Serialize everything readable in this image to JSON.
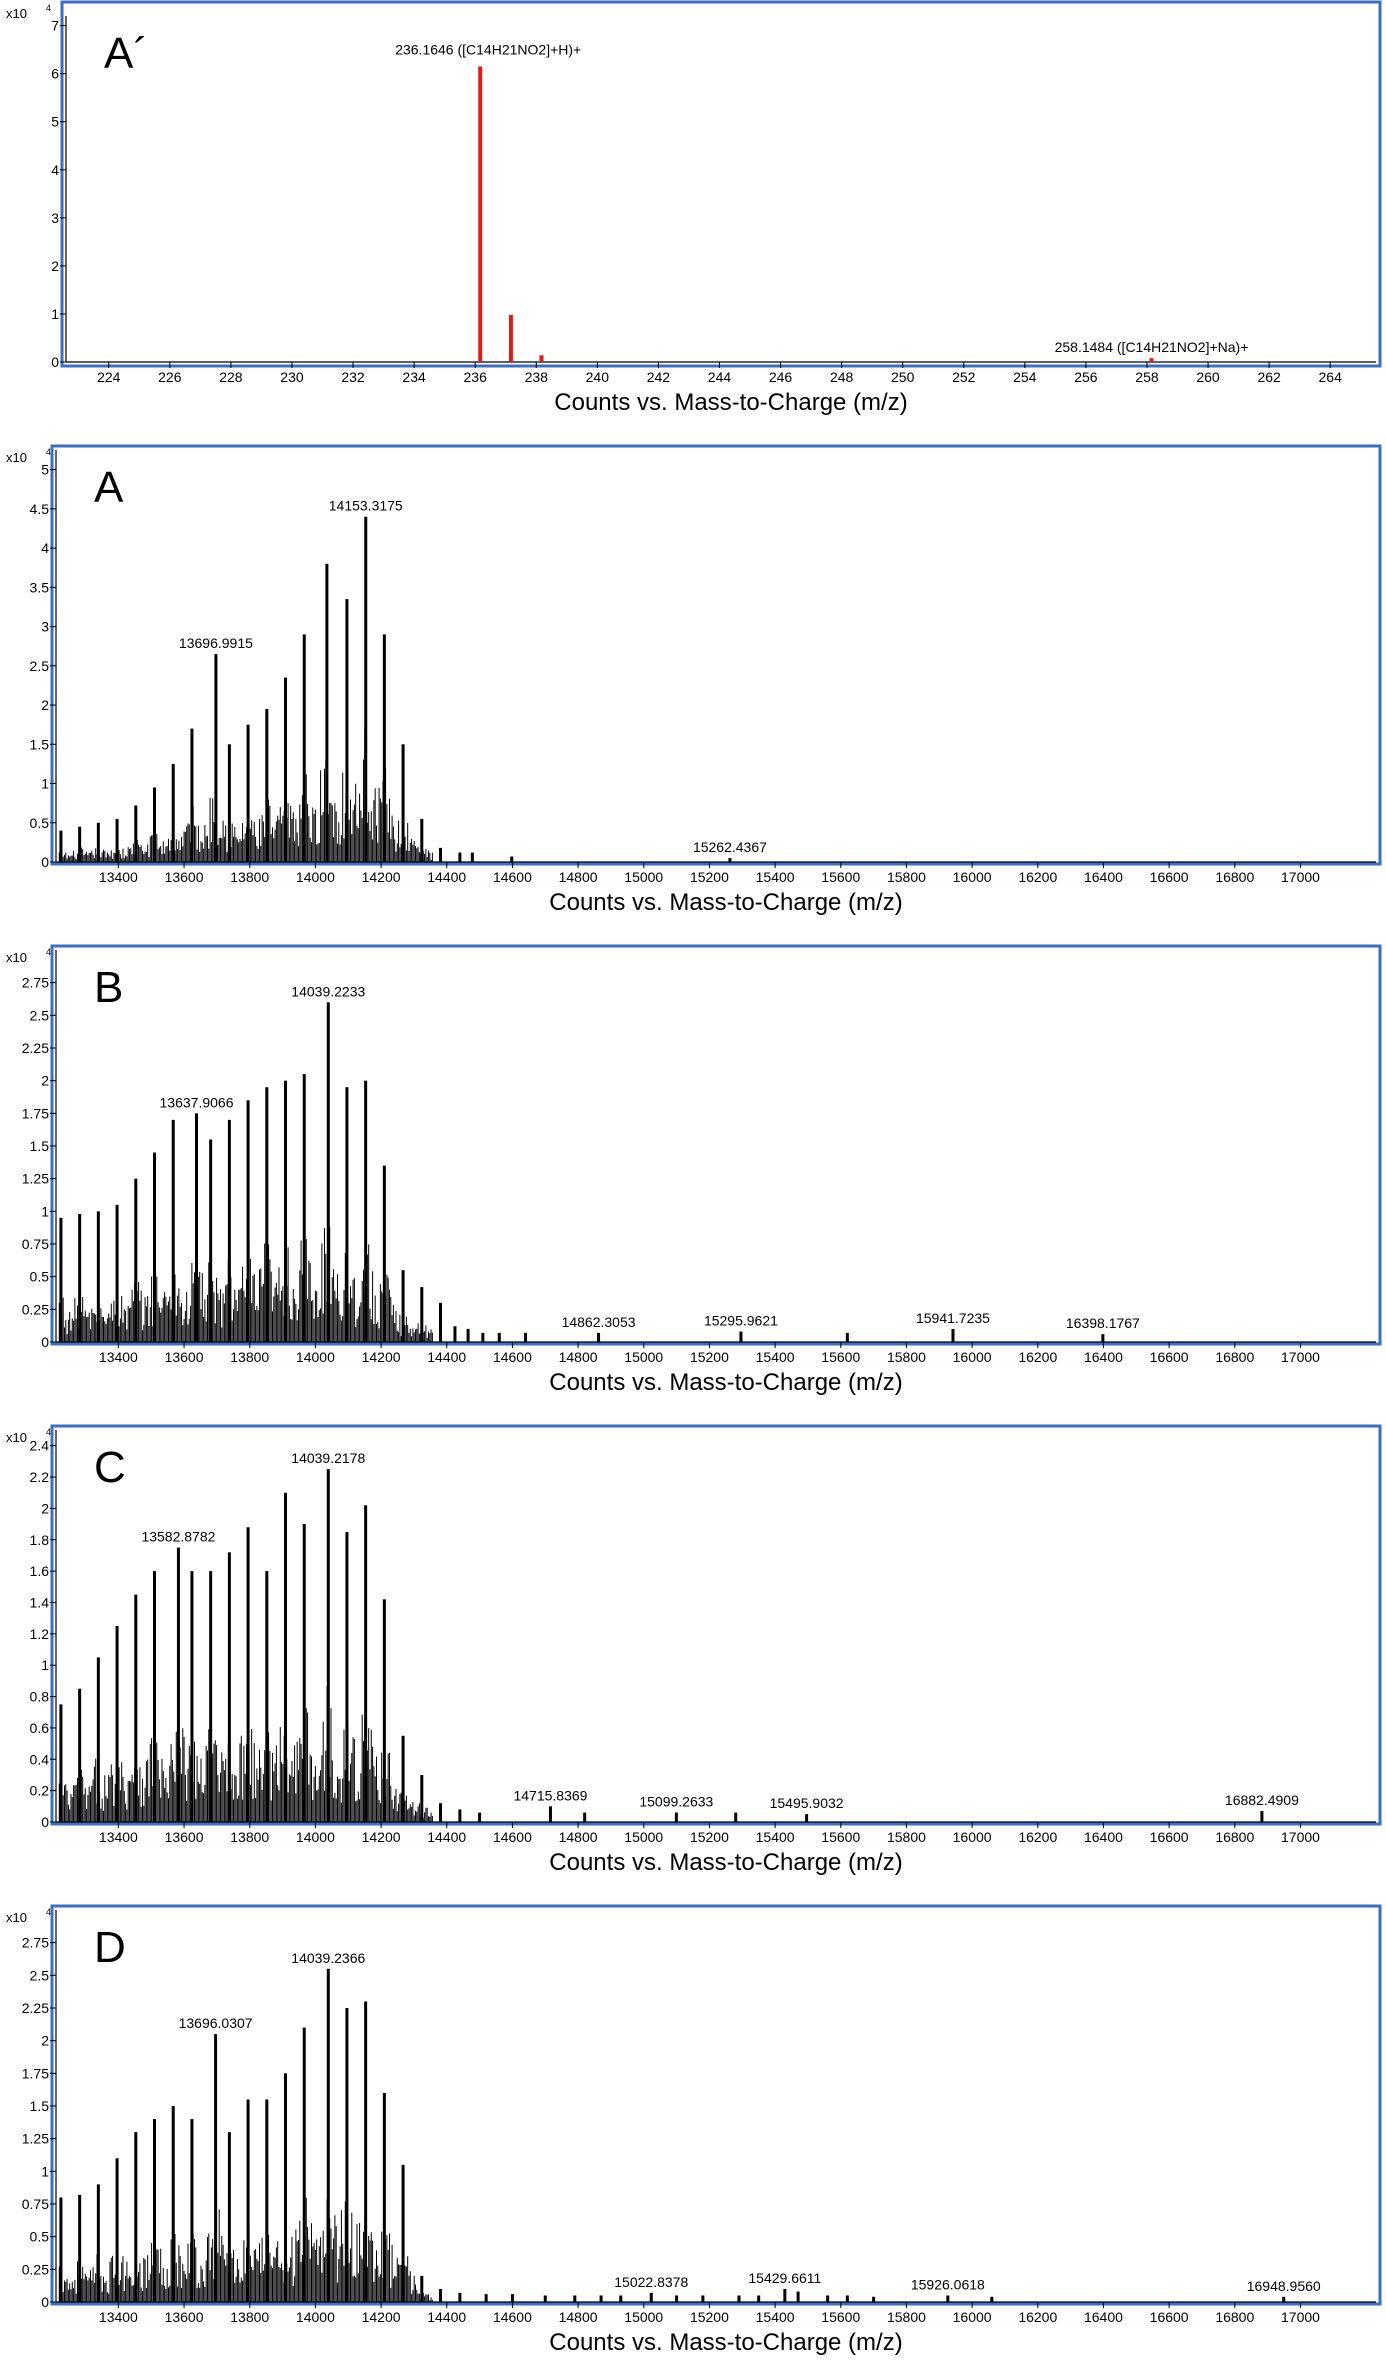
{
  "colors": {
    "frame": "#3a6fc4",
    "dark_bar": "#000000",
    "red_bar": "#e01b1b"
  },
  "chart_data": [
    {
      "type": "bar",
      "panel_label": "A´",
      "xlabel": "Counts vs. Mass-to-Charge (m/z)",
      "y_exponent_base": "x10",
      "y_exponent_power": "4",
      "xlim": [
        222.6,
        265.5
      ],
      "ylim": [
        0,
        7.2
      ],
      "x_ticks": [
        224,
        226,
        228,
        230,
        232,
        234,
        236,
        238,
        240,
        242,
        244,
        246,
        248,
        250,
        252,
        254,
        256,
        258,
        260,
        262,
        264
      ],
      "y_ticks": [
        0,
        1,
        2,
        3,
        4,
        5,
        6,
        7
      ],
      "y_tick_labels": [
        "0",
        "1",
        "2",
        "3",
        "4",
        "5",
        "6",
        "7"
      ],
      "bar_color": "red",
      "peaks": [
        {
          "x": 236.1646,
          "y": 6.15
        },
        {
          "x": 237.17,
          "y": 0.98
        },
        {
          "x": 238.17,
          "y": 0.14
        },
        {
          "x": 258.1484,
          "y": 0.08
        }
      ],
      "cluster": null,
      "noise": [],
      "annotations": [
        {
          "x": 236.1646,
          "y": 6.15,
          "text": "236.1646  ([C14H21NO2]+H)+"
        },
        {
          "x": 258.1484,
          "y": 0.08,
          "text": "258.1484  ([C14H21NO2]+Na)+"
        }
      ]
    },
    {
      "type": "bar",
      "panel_label": "A",
      "xlabel": "Counts vs. Mass-to-Charge (m/z)",
      "y_exponent_base": "x10",
      "y_exponent_power": "4",
      "xlim": [
        13210,
        17230
      ],
      "ylim": [
        0,
        5.25
      ],
      "x_ticks": [
        13400,
        13600,
        13800,
        14000,
        14200,
        14400,
        14600,
        14800,
        15000,
        15200,
        15400,
        15600,
        15800,
        16000,
        16200,
        16400,
        16600,
        16800,
        17000
      ],
      "y_ticks": [
        0,
        0.5,
        1,
        1.5,
        2,
        2.5,
        3,
        3.5,
        4,
        4.5,
        5
      ],
      "y_tick_labels": [
        "0",
        "0.5",
        "1",
        "1.5",
        "2",
        "2.5",
        "3",
        "3.5",
        "4",
        "4.5",
        "5"
      ],
      "bar_color": "dark",
      "peaks": [
        {
          "x": 13225,
          "y": 0.4
        },
        {
          "x": 13282,
          "y": 0.45
        },
        {
          "x": 13339,
          "y": 0.5
        },
        {
          "x": 13396,
          "y": 0.55
        },
        {
          "x": 13453,
          "y": 0.72
        },
        {
          "x": 13510,
          "y": 0.95
        },
        {
          "x": 13567,
          "y": 1.25
        },
        {
          "x": 13624,
          "y": 1.7
        },
        {
          "x": 13696.9915,
          "y": 2.65
        },
        {
          "x": 13738,
          "y": 1.5
        },
        {
          "x": 13795,
          "y": 1.75
        },
        {
          "x": 13852,
          "y": 1.95
        },
        {
          "x": 13909,
          "y": 2.35
        },
        {
          "x": 13966,
          "y": 2.9
        },
        {
          "x": 14035,
          "y": 3.8
        },
        {
          "x": 14096,
          "y": 3.35
        },
        {
          "x": 14153.3175,
          "y": 4.4
        },
        {
          "x": 14210,
          "y": 2.9
        },
        {
          "x": 14267,
          "y": 1.5
        },
        {
          "x": 14324,
          "y": 0.55
        },
        {
          "x": 14381,
          "y": 0.18
        },
        {
          "x": 14440,
          "y": 0.12
        },
        {
          "x": 14478,
          "y": 0.12
        },
        {
          "x": 14598,
          "y": 0.07
        },
        {
          "x": 15262.4367,
          "y": 0.05
        }
      ],
      "cluster": [
        13220,
        14360
      ],
      "noise": [
        13330,
        13330
      ],
      "annotations": [
        {
          "x": 14153.3175,
          "y": 4.4,
          "text": "14153.3175"
        },
        {
          "x": 13696.9915,
          "y": 2.65,
          "text": "13696.9915"
        },
        {
          "x": 15262.4367,
          "y": 0.05,
          "text": "15262.4367"
        }
      ]
    },
    {
      "type": "bar",
      "panel_label": "B",
      "xlabel": "Counts vs. Mass-to-Charge (m/z)",
      "y_exponent_base": "x10",
      "y_exponent_power": "4",
      "xlim": [
        13210,
        17230
      ],
      "ylim": [
        0,
        3.0
      ],
      "x_ticks": [
        13400,
        13600,
        13800,
        14000,
        14200,
        14400,
        14600,
        14800,
        15000,
        15200,
        15400,
        15600,
        15800,
        16000,
        16200,
        16400,
        16600,
        16800,
        17000
      ],
      "y_ticks": [
        0,
        0.25,
        0.5,
        0.75,
        1,
        1.25,
        1.5,
        1.75,
        2,
        2.25,
        2.5,
        2.75
      ],
      "y_tick_labels": [
        "0",
        "0.25",
        "0.5",
        "0.75",
        "1",
        "1.25",
        "1.5",
        "1.75",
        "2",
        "2.25",
        "2.5",
        "2.75"
      ],
      "bar_color": "dark",
      "peaks": [
        {
          "x": 13225,
          "y": 0.95
        },
        {
          "x": 13282,
          "y": 0.98
        },
        {
          "x": 13339,
          "y": 1.0
        },
        {
          "x": 13396,
          "y": 1.05
        },
        {
          "x": 13453,
          "y": 1.25
        },
        {
          "x": 13510,
          "y": 1.45
        },
        {
          "x": 13567,
          "y": 1.7
        },
        {
          "x": 13637.9066,
          "y": 1.75
        },
        {
          "x": 13681,
          "y": 1.55
        },
        {
          "x": 13738,
          "y": 1.7
        },
        {
          "x": 13795,
          "y": 1.85
        },
        {
          "x": 13852,
          "y": 1.95
        },
        {
          "x": 13909,
          "y": 2.0
        },
        {
          "x": 13966,
          "y": 2.05
        },
        {
          "x": 14039.2233,
          "y": 2.6
        },
        {
          "x": 14096,
          "y": 1.95
        },
        {
          "x": 14153,
          "y": 2.0
        },
        {
          "x": 14210,
          "y": 1.35
        },
        {
          "x": 14267,
          "y": 0.55
        },
        {
          "x": 14324,
          "y": 0.42
        },
        {
          "x": 14381,
          "y": 0.3
        },
        {
          "x": 14425,
          "y": 0.12
        },
        {
          "x": 14465,
          "y": 0.1
        },
        {
          "x": 14510,
          "y": 0.07
        },
        {
          "x": 14560,
          "y": 0.07
        },
        {
          "x": 14640,
          "y": 0.07
        },
        {
          "x": 14862.3053,
          "y": 0.07
        },
        {
          "x": 15295.9621,
          "y": 0.08
        },
        {
          "x": 15620,
          "y": 0.07
        },
        {
          "x": 15941.7235,
          "y": 0.1
        },
        {
          "x": 16398.1767,
          "y": 0.06
        }
      ],
      "cluster": [
        13220,
        14360
      ],
      "noise": [],
      "annotations": [
        {
          "x": 14039.2233,
          "y": 2.6,
          "text": "14039.2233"
        },
        {
          "x": 13637.9066,
          "y": 1.75,
          "text": "13637.9066"
        },
        {
          "x": 14862.3053,
          "y": 0.07,
          "text": "14862.3053"
        },
        {
          "x": 15295.9621,
          "y": 0.08,
          "text": "15295.9621"
        },
        {
          "x": 15941.7235,
          "y": 0.1,
          "text": "15941.7235"
        },
        {
          "x": 16398.1767,
          "y": 0.06,
          "text": "16398.1767"
        }
      ]
    },
    {
      "type": "bar",
      "panel_label": "C",
      "xlabel": "Counts vs. Mass-to-Charge (m/z)",
      "y_exponent_base": "x10",
      "y_exponent_power": "4",
      "xlim": [
        13210,
        17230
      ],
      "ylim": [
        0,
        2.5
      ],
      "x_ticks": [
        13400,
        13600,
        13800,
        14000,
        14200,
        14400,
        14600,
        14800,
        15000,
        15200,
        15400,
        15600,
        15800,
        16000,
        16200,
        16400,
        16600,
        16800,
        17000
      ],
      "y_ticks": [
        0,
        0.2,
        0.4,
        0.6,
        0.8,
        1,
        1.2,
        1.4,
        1.6,
        1.8,
        2,
        2.2,
        2.4
      ],
      "y_tick_labels": [
        "0",
        "0.2",
        "0.4",
        "0.6",
        "0.8",
        "1",
        "1.2",
        "1.4",
        "1.6",
        "1.8",
        "2",
        "2.2",
        "2.4"
      ],
      "bar_color": "dark",
      "peaks": [
        {
          "x": 13225,
          "y": 0.75
        },
        {
          "x": 13282,
          "y": 0.85
        },
        {
          "x": 13339,
          "y": 1.05
        },
        {
          "x": 13396,
          "y": 1.25
        },
        {
          "x": 13453,
          "y": 1.45
        },
        {
          "x": 13510,
          "y": 1.6
        },
        {
          "x": 13582.8782,
          "y": 1.75
        },
        {
          "x": 13624,
          "y": 1.6
        },
        {
          "x": 13681,
          "y": 1.6
        },
        {
          "x": 13738,
          "y": 1.72
        },
        {
          "x": 13795,
          "y": 1.88
        },
        {
          "x": 13852,
          "y": 1.6
        },
        {
          "x": 13909,
          "y": 2.1
        },
        {
          "x": 13966,
          "y": 1.9
        },
        {
          "x": 14039.2178,
          "y": 2.25
        },
        {
          "x": 14096,
          "y": 1.85
        },
        {
          "x": 14153,
          "y": 2.02
        },
        {
          "x": 14210,
          "y": 1.42
        },
        {
          "x": 14267,
          "y": 0.55
        },
        {
          "x": 14324,
          "y": 0.3
        },
        {
          "x": 14381,
          "y": 0.12
        },
        {
          "x": 14440,
          "y": 0.08
        },
        {
          "x": 14500,
          "y": 0.06
        },
        {
          "x": 14715.8369,
          "y": 0.1
        },
        {
          "x": 14820,
          "y": 0.06
        },
        {
          "x": 15099.2633,
          "y": 0.06
        },
        {
          "x": 15280,
          "y": 0.06
        },
        {
          "x": 15495.9032,
          "y": 0.05
        },
        {
          "x": 16882.4909,
          "y": 0.07
        }
      ],
      "cluster": [
        13220,
        14360
      ],
      "noise": [],
      "annotations": [
        {
          "x": 14039.2178,
          "y": 2.25,
          "text": "14039.2178"
        },
        {
          "x": 13582.8782,
          "y": 1.75,
          "text": "13582.8782"
        },
        {
          "x": 14715.8369,
          "y": 0.1,
          "text": "14715.8369"
        },
        {
          "x": 15099.2633,
          "y": 0.06,
          "text": "15099.2633"
        },
        {
          "x": 15495.9032,
          "y": 0.05,
          "text": "15495.9032"
        },
        {
          "x": 16882.4909,
          "y": 0.07,
          "text": "16882.4909"
        }
      ]
    },
    {
      "type": "bar",
      "panel_label": "D",
      "xlabel": "Counts vs. Mass-to-Charge (m/z)",
      "y_exponent_base": "x10",
      "y_exponent_power": "4",
      "xlim": [
        13210,
        17230
      ],
      "ylim": [
        0,
        3.0
      ],
      "x_ticks": [
        13400,
        13600,
        13800,
        14000,
        14200,
        14400,
        14600,
        14800,
        15000,
        15200,
        15400,
        15600,
        15800,
        16000,
        16200,
        16400,
        16600,
        16800,
        17000
      ],
      "y_ticks": [
        0,
        0.25,
        0.5,
        0.75,
        1,
        1.25,
        1.5,
        1.75,
        2,
        2.25,
        2.5,
        2.75
      ],
      "y_tick_labels": [
        "0",
        "0.25",
        "0.5",
        "0.75",
        "1",
        "1.25",
        "1.5",
        "1.75",
        "2",
        "2.25",
        "2.5",
        "2.75"
      ],
      "bar_color": "dark",
      "peaks": [
        {
          "x": 13225,
          "y": 0.8
        },
        {
          "x": 13282,
          "y": 0.82
        },
        {
          "x": 13339,
          "y": 0.9
        },
        {
          "x": 13396,
          "y": 1.1
        },
        {
          "x": 13453,
          "y": 1.3
        },
        {
          "x": 13510,
          "y": 1.4
        },
        {
          "x": 13567,
          "y": 1.5
        },
        {
          "x": 13624,
          "y": 1.4
        },
        {
          "x": 13696.0307,
          "y": 2.05
        },
        {
          "x": 13738,
          "y": 1.3
        },
        {
          "x": 13795,
          "y": 1.55
        },
        {
          "x": 13852,
          "y": 1.55
        },
        {
          "x": 13909,
          "y": 1.75
        },
        {
          "x": 13966,
          "y": 2.1
        },
        {
          "x": 14039.2366,
          "y": 2.55
        },
        {
          "x": 14096,
          "y": 2.25
        },
        {
          "x": 14153,
          "y": 2.3
        },
        {
          "x": 14210,
          "y": 1.6
        },
        {
          "x": 14267,
          "y": 1.05
        },
        {
          "x": 14324,
          "y": 0.2
        },
        {
          "x": 14381,
          "y": 0.1
        },
        {
          "x": 14440,
          "y": 0.07
        },
        {
          "x": 14520,
          "y": 0.06
        },
        {
          "x": 14600,
          "y": 0.06
        },
        {
          "x": 14700,
          "y": 0.05
        },
        {
          "x": 14790,
          "y": 0.05
        },
        {
          "x": 14870,
          "y": 0.05
        },
        {
          "x": 14930,
          "y": 0.05
        },
        {
          "x": 15022.8378,
          "y": 0.07
        },
        {
          "x": 15100,
          "y": 0.05
        },
        {
          "x": 15180,
          "y": 0.05
        },
        {
          "x": 15290,
          "y": 0.05
        },
        {
          "x": 15350,
          "y": 0.05
        },
        {
          "x": 15429.6611,
          "y": 0.1
        },
        {
          "x": 15470,
          "y": 0.08
        },
        {
          "x": 15560,
          "y": 0.05
        },
        {
          "x": 15620,
          "y": 0.05
        },
        {
          "x": 15700,
          "y": 0.04
        },
        {
          "x": 15926.0618,
          "y": 0.05
        },
        {
          "x": 16060,
          "y": 0.04
        },
        {
          "x": 16948.956,
          "y": 0.04
        }
      ],
      "cluster": [
        13220,
        14360
      ],
      "noise": [],
      "annotations": [
        {
          "x": 14039.2366,
          "y": 2.55,
          "text": "14039.2366"
        },
        {
          "x": 13696.0307,
          "y": 2.05,
          "text": "13696.0307"
        },
        {
          "x": 15022.8378,
          "y": 0.07,
          "text": "15022.8378"
        },
        {
          "x": 15429.6611,
          "y": 0.1,
          "text": "15429.6611"
        },
        {
          "x": 15926.0618,
          "y": 0.05,
          "text": "15926.0618"
        },
        {
          "x": 16948.956,
          "y": 0.04,
          "text": "16948.9560"
        }
      ]
    }
  ]
}
